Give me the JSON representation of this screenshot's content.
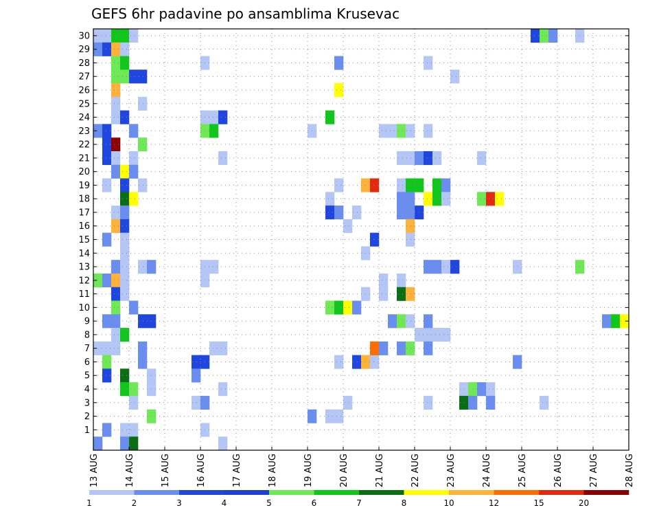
{
  "chart_data": {
    "type": "heatmap",
    "title": "GEFS 6hr padavine po ansamblima Krusevac",
    "xlabel": "",
    "ylabel": "",
    "x_ticks": [
      "13 AUG",
      "14 AUG",
      "15 AUG",
      "16 AUG",
      "17 AUG",
      "18 AUG",
      "19 AUG",
      "20 AUG",
      "21 AUG",
      "22 AUG",
      "23 AUG",
      "24 AUG",
      "25 AUG",
      "26 AUG",
      "27 AUG",
      "28 AUG"
    ],
    "x_range_days": [
      13,
      28
    ],
    "x_step_hours": 6,
    "y_ticks": [
      "1",
      "2",
      "3",
      "4",
      "5",
      "6",
      "7",
      "8",
      "9",
      "10",
      "11",
      "12",
      "13",
      "14",
      "15",
      "16",
      "17",
      "18",
      "19",
      "20",
      "21",
      "22",
      "23",
      "24",
      "25",
      "26",
      "27",
      "28",
      "29",
      "30"
    ],
    "y_range": [
      0,
      30
    ],
    "grid": true,
    "colorbar": {
      "position": "bottom",
      "labels": [
        "1",
        "2",
        "3",
        "4",
        "5",
        "6",
        "7",
        "8",
        "10",
        "12",
        "15",
        "20"
      ],
      "colors": [
        "#b3c6f5",
        "#6a8ef0",
        "#2046e0",
        "#1e3fd6",
        "#6fe856",
        "#10c61c",
        "#0a6e14",
        "#ffff00",
        "#ffb23a",
        "#ff6c00",
        "#e22a10",
        "#8b0000"
      ]
    },
    "cells": [
      {
        "d": 13,
        "s": 1,
        "m": 30,
        "l": 0
      },
      {
        "d": 13,
        "s": 2,
        "m": 30,
        "l": 0
      },
      {
        "d": 13,
        "s": 3,
        "m": 30,
        "l": 5
      },
      {
        "d": 13,
        "s": 4,
        "m": 30,
        "l": 5
      },
      {
        "d": 14,
        "s": 1,
        "m": 30,
        "l": 0
      },
      {
        "d": 13,
        "s": 1,
        "m": 29,
        "l": 1
      },
      {
        "d": 13,
        "s": 2,
        "m": 29,
        "l": 2
      },
      {
        "d": 13,
        "s": 3,
        "m": 29,
        "l": 8
      },
      {
        "d": 13,
        "s": 4,
        "m": 29,
        "l": 0
      },
      {
        "d": 13,
        "s": 3,
        "m": 28,
        "l": 4
      },
      {
        "d": 13,
        "s": 4,
        "m": 28,
        "l": 5
      },
      {
        "d": 13,
        "s": 3,
        "m": 27,
        "l": 4
      },
      {
        "d": 13,
        "s": 4,
        "m": 27,
        "l": 4
      },
      {
        "d": 14,
        "s": 1,
        "m": 27,
        "l": 2
      },
      {
        "d": 14,
        "s": 2,
        "m": 27,
        "l": 2
      },
      {
        "d": 13,
        "s": 3,
        "m": 26,
        "l": 8
      },
      {
        "d": 13,
        "s": 3,
        "m": 25,
        "l": 0
      },
      {
        "d": 14,
        "s": 2,
        "m": 25,
        "l": 0
      },
      {
        "d": 13,
        "s": 3,
        "m": 24,
        "l": 0
      },
      {
        "d": 13,
        "s": 4,
        "m": 24,
        "l": 2
      },
      {
        "d": 13,
        "s": 1,
        "m": 23,
        "l": 1
      },
      {
        "d": 13,
        "s": 2,
        "m": 23,
        "l": 2
      },
      {
        "d": 14,
        "s": 1,
        "m": 23,
        "l": 1
      },
      {
        "d": 13,
        "s": 2,
        "m": 22,
        "l": 2
      },
      {
        "d": 13,
        "s": 3,
        "m": 22,
        "l": 11
      },
      {
        "d": 14,
        "s": 2,
        "m": 22,
        "l": 4
      },
      {
        "d": 13,
        "s": 2,
        "m": 21,
        "l": 2
      },
      {
        "d": 13,
        "s": 3,
        "m": 21,
        "l": 0
      },
      {
        "d": 14,
        "s": 1,
        "m": 21,
        "l": 0
      },
      {
        "d": 13,
        "s": 3,
        "m": 20,
        "l": 1
      },
      {
        "d": 13,
        "s": 4,
        "m": 20,
        "l": 7
      },
      {
        "d": 14,
        "s": 1,
        "m": 20,
        "l": 1
      },
      {
        "d": 13,
        "s": 2,
        "m": 19,
        "l": 0
      },
      {
        "d": 13,
        "s": 4,
        "m": 19,
        "l": 2
      },
      {
        "d": 14,
        "s": 2,
        "m": 19,
        "l": 0
      },
      {
        "d": 13,
        "s": 4,
        "m": 18,
        "l": 6
      },
      {
        "d": 14,
        "s": 1,
        "m": 18,
        "l": 7
      },
      {
        "d": 13,
        "s": 3,
        "m": 17,
        "l": 0
      },
      {
        "d": 13,
        "s": 4,
        "m": 17,
        "l": 1
      },
      {
        "d": 13,
        "s": 3,
        "m": 16,
        "l": 8
      },
      {
        "d": 13,
        "s": 4,
        "m": 16,
        "l": 2
      },
      {
        "d": 13,
        "s": 4,
        "m": 15,
        "l": 0
      },
      {
        "d": 13,
        "s": 2,
        "m": 15,
        "l": 1
      },
      {
        "d": 13,
        "s": 4,
        "m": 14,
        "l": 0
      },
      {
        "d": 13,
        "s": 3,
        "m": 13,
        "l": 1
      },
      {
        "d": 13,
        "s": 4,
        "m": 13,
        "l": 0
      },
      {
        "d": 14,
        "s": 2,
        "m": 13,
        "l": 0
      },
      {
        "d": 14,
        "s": 3,
        "m": 13,
        "l": 1
      },
      {
        "d": 13,
        "s": 1,
        "m": 12,
        "l": 4
      },
      {
        "d": 13,
        "s": 2,
        "m": 12,
        "l": 1
      },
      {
        "d": 13,
        "s": 3,
        "m": 12,
        "l": 8
      },
      {
        "d": 13,
        "s": 4,
        "m": 12,
        "l": 0
      },
      {
        "d": 13,
        "s": 3,
        "m": 11,
        "l": 2
      },
      {
        "d": 13,
        "s": 4,
        "m": 11,
        "l": 0
      },
      {
        "d": 13,
        "s": 3,
        "m": 10,
        "l": 4
      },
      {
        "d": 14,
        "s": 1,
        "m": 10,
        "l": 1
      },
      {
        "d": 13,
        "s": 2,
        "m": 9,
        "l": 1
      },
      {
        "d": 13,
        "s": 3,
        "m": 9,
        "l": 1
      },
      {
        "d": 14,
        "s": 2,
        "m": 9,
        "l": 2
      },
      {
        "d": 14,
        "s": 3,
        "m": 9,
        "l": 2
      },
      {
        "d": 13,
        "s": 3,
        "m": 8,
        "l": 0
      },
      {
        "d": 13,
        "s": 4,
        "m": 8,
        "l": 5
      },
      {
        "d": 13,
        "s": 1,
        "m": 7,
        "l": 0
      },
      {
        "d": 13,
        "s": 2,
        "m": 7,
        "l": 0
      },
      {
        "d": 13,
        "s": 3,
        "m": 7,
        "l": 0
      },
      {
        "d": 14,
        "s": 2,
        "m": 7,
        "l": 1
      },
      {
        "d": 13,
        "s": 2,
        "m": 6,
        "l": 4
      },
      {
        "d": 14,
        "s": 2,
        "m": 6,
        "l": 1
      },
      {
        "d": 13,
        "s": 2,
        "m": 5,
        "l": 2
      },
      {
        "d": 13,
        "s": 4,
        "m": 5,
        "l": 6
      },
      {
        "d": 14,
        "s": 3,
        "m": 5,
        "l": 0
      },
      {
        "d": 13,
        "s": 4,
        "m": 4,
        "l": 5
      },
      {
        "d": 14,
        "s": 1,
        "m": 4,
        "l": 4
      },
      {
        "d": 14,
        "s": 3,
        "m": 4,
        "l": 0
      },
      {
        "d": 14,
        "s": 1,
        "m": 3,
        "l": 0
      },
      {
        "d": 14,
        "s": 3,
        "m": 2,
        "l": 4
      },
      {
        "d": 13,
        "s": 2,
        "m": 1,
        "l": 1
      },
      {
        "d": 13,
        "s": 4,
        "m": 1,
        "l": 0
      },
      {
        "d": 14,
        "s": 1,
        "m": 1,
        "l": 0
      },
      {
        "d": 13,
        "s": 1,
        "m": 0,
        "l": 1
      },
      {
        "d": 13,
        "s": 4,
        "m": 0,
        "l": 1
      },
      {
        "d": 14,
        "s": 1,
        "m": 0,
        "l": 6
      },
      {
        "d": 16,
        "s": 1,
        "m": 28,
        "l": 0
      },
      {
        "d": 16,
        "s": 1,
        "m": 24,
        "l": 0
      },
      {
        "d": 16,
        "s": 2,
        "m": 24,
        "l": 0
      },
      {
        "d": 16,
        "s": 1,
        "m": 23,
        "l": 4
      },
      {
        "d": 16,
        "s": 2,
        "m": 23,
        "l": 5
      },
      {
        "d": 16,
        "s": 3,
        "m": 24,
        "l": 2
      },
      {
        "d": 16,
        "s": 3,
        "m": 21,
        "l": 0
      },
      {
        "d": 16,
        "s": 1,
        "m": 13,
        "l": 0
      },
      {
        "d": 16,
        "s": 2,
        "m": 13,
        "l": 0
      },
      {
        "d": 16,
        "s": 1,
        "m": 12,
        "l": 0
      },
      {
        "d": 16,
        "s": 2,
        "m": 7,
        "l": 0
      },
      {
        "d": 16,
        "s": 3,
        "m": 7,
        "l": 0
      },
      {
        "d": 15,
        "s": 4,
        "m": 6,
        "l": 2
      },
      {
        "d": 16,
        "s": 1,
        "m": 6,
        "l": 2
      },
      {
        "d": 15,
        "s": 4,
        "m": 5,
        "l": 1
      },
      {
        "d": 16,
        "s": 3,
        "m": 4,
        "l": 0
      },
      {
        "d": 15,
        "s": 4,
        "m": 3,
        "l": 0
      },
      {
        "d": 16,
        "s": 1,
        "m": 3,
        "l": 1
      },
      {
        "d": 16,
        "s": 1,
        "m": 1,
        "l": 0
      },
      {
        "d": 16,
        "s": 3,
        "m": 0,
        "l": 0
      },
      {
        "d": 19,
        "s": 1,
        "m": 23,
        "l": 0
      },
      {
        "d": 19,
        "s": 1,
        "m": 2,
        "l": 1
      },
      {
        "d": 19,
        "s": 3,
        "m": 24,
        "l": 5
      },
      {
        "d": 19,
        "s": 4,
        "m": 28,
        "l": 1
      },
      {
        "d": 19,
        "s": 4,
        "m": 26,
        "l": 7
      },
      {
        "d": 19,
        "s": 4,
        "m": 19,
        "l": 0
      },
      {
        "d": 19,
        "s": 3,
        "m": 18,
        "l": 0
      },
      {
        "d": 19,
        "s": 3,
        "m": 17,
        "l": 2
      },
      {
        "d": 19,
        "s": 4,
        "m": 17,
        "l": 1
      },
      {
        "d": 20,
        "s": 2,
        "m": 17,
        "l": 0
      },
      {
        "d": 20,
        "s": 1,
        "m": 16,
        "l": 0
      },
      {
        "d": 19,
        "s": 3,
        "m": 10,
        "l": 4
      },
      {
        "d": 19,
        "s": 4,
        "m": 10,
        "l": 5
      },
      {
        "d": 20,
        "s": 1,
        "m": 10,
        "l": 7
      },
      {
        "d": 20,
        "s": 2,
        "m": 10,
        "l": 1
      },
      {
        "d": 19,
        "s": 4,
        "m": 6,
        "l": 0
      },
      {
        "d": 19,
        "s": 3,
        "m": 2,
        "l": 0
      },
      {
        "d": 19,
        "s": 4,
        "m": 2,
        "l": 0
      },
      {
        "d": 20,
        "s": 1,
        "m": 3,
        "l": 0
      },
      {
        "d": 20,
        "s": 2,
        "m": 6,
        "l": 2
      },
      {
        "d": 20,
        "s": 3,
        "m": 6,
        "l": 8
      },
      {
        "d": 20,
        "s": 4,
        "m": 6,
        "l": 0
      },
      {
        "d": 20,
        "s": 4,
        "m": 7,
        "l": 9
      },
      {
        "d": 21,
        "s": 1,
        "m": 7,
        "l": 1
      },
      {
        "d": 20,
        "s": 4,
        "m": 15,
        "l": 2
      },
      {
        "d": 20,
        "s": 3,
        "m": 14,
        "l": 0
      },
      {
        "d": 20,
        "s": 3,
        "m": 11,
        "l": 0
      },
      {
        "d": 20,
        "s": 3,
        "m": 19,
        "l": 8
      },
      {
        "d": 20,
        "s": 4,
        "m": 19,
        "l": 10
      },
      {
        "d": 21,
        "s": 1,
        "m": 23,
        "l": 0
      },
      {
        "d": 21,
        "s": 2,
        "m": 23,
        "l": 0
      },
      {
        "d": 21,
        "s": 3,
        "m": 23,
        "l": 4
      },
      {
        "d": 21,
        "s": 4,
        "m": 23,
        "l": 0
      },
      {
        "d": 21,
        "s": 3,
        "m": 21,
        "l": 0
      },
      {
        "d": 21,
        "s": 4,
        "m": 21,
        "l": 0
      },
      {
        "d": 22,
        "s": 1,
        "m": 21,
        "l": 1
      },
      {
        "d": 21,
        "s": 3,
        "m": 19,
        "l": 0
      },
      {
        "d": 21,
        "s": 4,
        "m": 19,
        "l": 5
      },
      {
        "d": 22,
        "s": 1,
        "m": 19,
        "l": 4
      },
      {
        "d": 22,
        "s": 3,
        "m": 19,
        "l": 5
      },
      {
        "d": 22,
        "s": 4,
        "m": 19,
        "l": 1
      },
      {
        "d": 21,
        "s": 3,
        "m": 18,
        "l": 1
      },
      {
        "d": 21,
        "s": 4,
        "m": 18,
        "l": 1
      },
      {
        "d": 21,
        "s": 4,
        "m": 17,
        "l": 1
      },
      {
        "d": 21,
        "s": 3,
        "m": 17,
        "l": 1
      },
      {
        "d": 21,
        "s": 4,
        "m": 16,
        "l": 8
      },
      {
        "d": 22,
        "s": 1,
        "m": 17,
        "l": 2
      },
      {
        "d": 21,
        "s": 4,
        "m": 15,
        "l": 0
      },
      {
        "d": 21,
        "s": 1,
        "m": 12,
        "l": 0
      },
      {
        "d": 21,
        "s": 1,
        "m": 11,
        "l": 0
      },
      {
        "d": 21,
        "s": 3,
        "m": 12,
        "l": 0
      },
      {
        "d": 21,
        "s": 3,
        "m": 11,
        "l": 6
      },
      {
        "d": 21,
        "s": 4,
        "m": 11,
        "l": 8
      },
      {
        "d": 21,
        "s": 2,
        "m": 9,
        "l": 1
      },
      {
        "d": 21,
        "s": 3,
        "m": 9,
        "l": 4
      },
      {
        "d": 21,
        "s": 4,
        "m": 9,
        "l": 0
      },
      {
        "d": 21,
        "s": 3,
        "m": 7,
        "l": 1
      },
      {
        "d": 21,
        "s": 4,
        "m": 7,
        "l": 4
      },
      {
        "d": 22,
        "s": 1,
        "m": 8,
        "l": 0
      },
      {
        "d": 22,
        "s": 2,
        "m": 8,
        "l": 0
      },
      {
        "d": 22,
        "s": 3,
        "m": 8,
        "l": 0
      },
      {
        "d": 22,
        "s": 4,
        "m": 8,
        "l": 0
      },
      {
        "d": 22,
        "s": 2,
        "m": 9,
        "l": 1
      },
      {
        "d": 22,
        "s": 2,
        "m": 7,
        "l": 1
      },
      {
        "d": 22,
        "s": 2,
        "m": 23,
        "l": 0
      },
      {
        "d": 22,
        "s": 2,
        "m": 28,
        "l": 0
      },
      {
        "d": 22,
        "s": 2,
        "m": 21,
        "l": 2
      },
      {
        "d": 22,
        "s": 3,
        "m": 21,
        "l": 0
      },
      {
        "d": 22,
        "s": 1,
        "m": 19,
        "l": 5
      },
      {
        "d": 22,
        "s": 2,
        "m": 18,
        "l": 7
      },
      {
        "d": 22,
        "s": 3,
        "m": 18,
        "l": 5
      },
      {
        "d": 22,
        "s": 4,
        "m": 18,
        "l": 0
      },
      {
        "d": 22,
        "s": 2,
        "m": 13,
        "l": 1
      },
      {
        "d": 22,
        "s": 3,
        "m": 13,
        "l": 1
      },
      {
        "d": 22,
        "s": 4,
        "m": 13,
        "l": 0
      },
      {
        "d": 23,
        "s": 1,
        "m": 13,
        "l": 2
      },
      {
        "d": 22,
        "s": 2,
        "m": 3,
        "l": 0
      },
      {
        "d": 23,
        "s": 1,
        "m": 27,
        "l": 0
      },
      {
        "d": 23,
        "s": 2,
        "m": 4,
        "l": 0
      },
      {
        "d": 23,
        "s": 3,
        "m": 4,
        "l": 4
      },
      {
        "d": 23,
        "s": 4,
        "m": 4,
        "l": 1
      },
      {
        "d": 23,
        "s": 2,
        "m": 3,
        "l": 6
      },
      {
        "d": 23,
        "s": 3,
        "m": 3,
        "l": 1
      },
      {
        "d": 23,
        "s": 4,
        "m": 21,
        "l": 0
      },
      {
        "d": 23,
        "s": 4,
        "m": 18,
        "l": 4
      },
      {
        "d": 24,
        "s": 1,
        "m": 18,
        "l": 10
      },
      {
        "d": 24,
        "s": 2,
        "m": 18,
        "l": 7
      },
      {
        "d": 24,
        "s": 1,
        "m": 4,
        "l": 0
      },
      {
        "d": 24,
        "s": 1,
        "m": 3,
        "l": 1
      },
      {
        "d": 24,
        "s": 4,
        "m": 13,
        "l": 0
      },
      {
        "d": 24,
        "s": 4,
        "m": 6,
        "l": 1
      },
      {
        "d": 25,
        "s": 3,
        "m": 3,
        "l": 0
      },
      {
        "d": 25,
        "s": 2,
        "m": 30,
        "l": 2
      },
      {
        "d": 25,
        "s": 3,
        "m": 30,
        "l": 4
      },
      {
        "d": 25,
        "s": 4,
        "m": 30,
        "l": 1
      },
      {
        "d": 26,
        "s": 3,
        "m": 30,
        "l": 0
      },
      {
        "d": 26,
        "s": 3,
        "m": 13,
        "l": 4
      },
      {
        "d": 27,
        "s": 2,
        "m": 9,
        "l": 1
      },
      {
        "d": 27,
        "s": 3,
        "m": 9,
        "l": 5
      },
      {
        "d": 27,
        "s": 4,
        "m": 9,
        "l": 7
      }
    ]
  }
}
